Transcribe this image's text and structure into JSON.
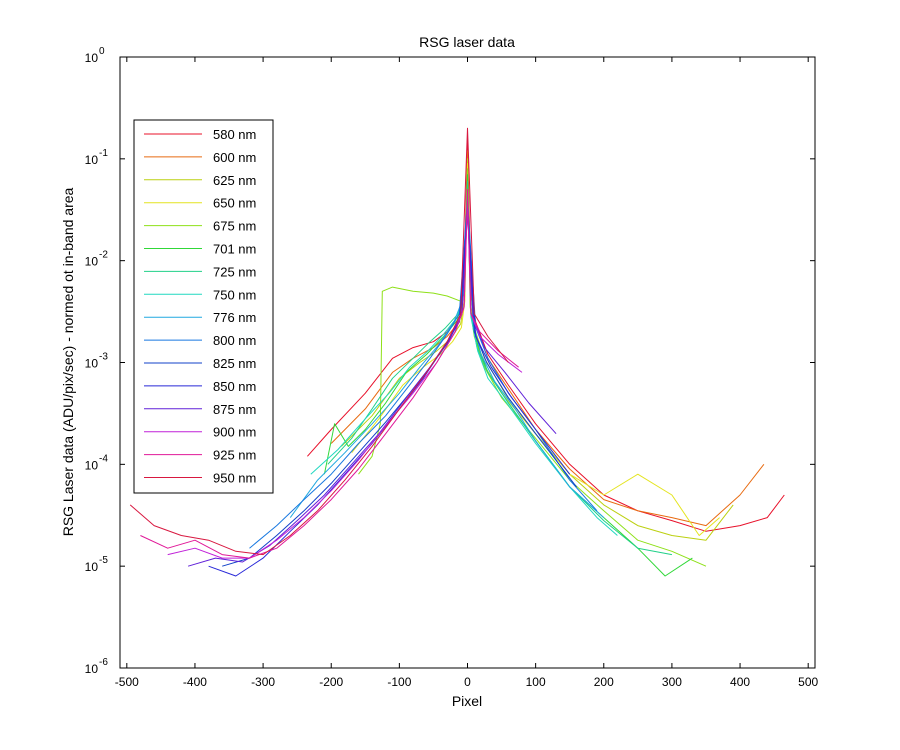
{
  "chart_data": {
    "type": "line",
    "title": "RSG  laser data",
    "xlabel": "Pixel",
    "ylabel": "RSG Laser data (ADU/pix/sec) - normed ot in-band area",
    "xlim": [
      -510,
      510
    ],
    "ylim": [
      1e-06,
      1
    ],
    "y_scale": "log",
    "grid": false,
    "legend_position": "upper-left",
    "x_ticks": [
      -500,
      -400,
      -300,
      -200,
      -100,
      0,
      100,
      200,
      300,
      400,
      500
    ],
    "x_tick_labels": [
      "-500",
      "-400",
      "-300",
      "-200",
      "-100",
      "0",
      "100",
      "200",
      "300",
      "400",
      "500"
    ],
    "y_ticks": [
      {
        "value": 1e-06,
        "base": "10",
        "exp": "-6"
      },
      {
        "value": 1e-05,
        "base": "10",
        "exp": "-5"
      },
      {
        "value": 0.0001,
        "base": "10",
        "exp": "-4"
      },
      {
        "value": 0.001,
        "base": "10",
        "exp": "-3"
      },
      {
        "value": 0.01,
        "base": "10",
        "exp": "-2"
      },
      {
        "value": 0.1,
        "base": "10",
        "exp": "-1"
      },
      {
        "value": 1,
        "base": "10",
        "exp": "0"
      }
    ],
    "series": [
      {
        "name": "580 nm",
        "color": "#e8102a",
        "x": [
          -235,
          -200,
          -150,
          -110,
          -80,
          -50,
          -30,
          -12,
          -5,
          0,
          5,
          12,
          30,
          60,
          100,
          150,
          200,
          250,
          300,
          350,
          400,
          440,
          465
        ],
        "y": [
          0.00012,
          0.00022,
          0.0005,
          0.0011,
          0.0014,
          0.0016,
          0.002,
          0.003,
          0.006,
          0.15,
          0.005,
          0.0025,
          0.0012,
          0.0006,
          0.00025,
          0.0001,
          5e-05,
          3.5e-05,
          2.8e-05,
          2.2e-05,
          2.5e-05,
          3e-05,
          5e-05
        ]
      },
      {
        "name": "600 nm",
        "color": "#e86a10",
        "x": [
          -200,
          -150,
          -110,
          -80,
          -50,
          -30,
          -12,
          -5,
          0,
          5,
          12,
          30,
          60,
          100,
          150,
          200,
          250,
          300,
          350,
          400,
          435
        ],
        "y": [
          0.00016,
          0.00035,
          0.0008,
          0.0011,
          0.0014,
          0.0018,
          0.0025,
          0.005,
          0.12,
          0.0045,
          0.0023,
          0.0011,
          0.00055,
          0.00022,
          9e-05,
          4.5e-05,
          3.5e-05,
          3e-05,
          2.5e-05,
          5e-05,
          0.0001
        ]
      },
      {
        "name": "625 nm",
        "color": "#bcd010",
        "x": [
          -185,
          -140,
          -100,
          -70,
          -45,
          -25,
          -10,
          -4,
          0,
          4,
          10,
          25,
          55,
          100,
          150,
          200,
          250,
          300,
          350,
          390
        ],
        "y": [
          0.00015,
          0.0003,
          0.0007,
          0.001,
          0.0013,
          0.0017,
          0.0024,
          0.0045,
          0.1,
          0.004,
          0.0022,
          0.0011,
          0.0005,
          0.0002,
          8e-05,
          4e-05,
          2.5e-05,
          2e-05,
          1.8e-05,
          4e-05
        ]
      },
      {
        "name": "650 nm",
        "color": "#e4e420",
        "x": [
          -170,
          -130,
          -95,
          -65,
          -40,
          -22,
          -9,
          -4,
          0,
          4,
          9,
          22,
          50,
          100,
          150,
          200,
          250,
          300,
          340,
          370
        ],
        "y": [
          0.00013,
          0.00028,
          0.0006,
          0.0009,
          0.0012,
          0.0016,
          0.0022,
          0.004,
          0.09,
          0.0038,
          0.002,
          0.001,
          0.0005,
          0.0002,
          8e-05,
          5e-05,
          8e-05,
          5e-05,
          2e-05,
          3e-05
        ]
      },
      {
        "name": "675 nm",
        "color": "#8ee018",
        "x": [
          -160,
          -140,
          -128,
          -125,
          -110,
          -80,
          -50,
          -30,
          -10,
          -4,
          0,
          4,
          10,
          25,
          50,
          100,
          150,
          200,
          250,
          300,
          350
        ],
        "y": [
          8e-05,
          0.00012,
          0.00025,
          0.005,
          0.0055,
          0.005,
          0.0048,
          0.0045,
          0.004,
          0.005,
          0.08,
          0.0035,
          0.0018,
          0.0009,
          0.00045,
          0.00018,
          7e-05,
          3.5e-05,
          1.8e-05,
          1.4e-05,
          1e-05
        ]
      },
      {
        "name": "701 nm",
        "color": "#30d838",
        "x": [
          -210,
          -195,
          -175,
          -150,
          -120,
          -90,
          -60,
          -35,
          -15,
          -5,
          0,
          5,
          15,
          30,
          60,
          100,
          150,
          200,
          250,
          290,
          330
        ],
        "y": [
          8e-05,
          0.00025,
          0.00015,
          0.00022,
          0.0004,
          0.0008,
          0.0012,
          0.0018,
          0.0026,
          0.005,
          0.07,
          0.0032,
          0.0015,
          0.0008,
          0.0004,
          0.00017,
          6e-05,
          3e-05,
          1.5e-05,
          8e-06,
          1.2e-05
        ]
      },
      {
        "name": "725 nm",
        "color": "#20d088",
        "x": [
          -205,
          -170,
          -140,
          -110,
          -80,
          -55,
          -32,
          -14,
          -5,
          0,
          5,
          14,
          30,
          60,
          100,
          150,
          200,
          250,
          300
        ],
        "y": [
          0.0001,
          0.00018,
          0.00035,
          0.0007,
          0.0011,
          0.0016,
          0.0022,
          0.003,
          0.005,
          0.06,
          0.003,
          0.0014,
          0.0008,
          0.0004,
          0.00017,
          6e-05,
          2.8e-05,
          1.5e-05,
          1.3e-05
        ]
      },
      {
        "name": "750 nm",
        "color": "#20d8c0",
        "x": [
          -230,
          -190,
          -150,
          -115,
          -85,
          -58,
          -35,
          -15,
          -5,
          0,
          5,
          15,
          30,
          60,
          100,
          150,
          190,
          220
        ],
        "y": [
          8e-05,
          0.00014,
          0.00028,
          0.0005,
          0.0009,
          0.0013,
          0.0019,
          0.0028,
          0.005,
          0.05,
          0.0028,
          0.0013,
          0.0007,
          0.00038,
          0.00016,
          6e-05,
          3e-05,
          2e-05
        ]
      },
      {
        "name": "776 nm",
        "color": "#20a8e0",
        "x": [
          -260,
          -220,
          -180,
          -140,
          -100,
          -70,
          -42,
          -20,
          -8,
          0,
          8,
          20,
          40,
          70,
          100,
          150,
          200
        ],
        "y": [
          3e-05,
          7e-05,
          0.00013,
          0.00025,
          0.0005,
          0.0009,
          0.0015,
          0.0025,
          0.004,
          0.045,
          0.0025,
          0.0012,
          0.00065,
          0.00035,
          0.00017,
          6e-05,
          3e-05
        ]
      },
      {
        "name": "800 nm",
        "color": "#1878e0",
        "x": [
          -320,
          -280,
          -240,
          -200,
          -160,
          -120,
          -85,
          -55,
          -30,
          -12,
          0,
          12,
          30,
          60,
          100,
          150,
          190
        ],
        "y": [
          1.5e-05,
          2.5e-05,
          4.5e-05,
          8e-05,
          0.00016,
          0.0003,
          0.0006,
          0.0011,
          0.0019,
          0.003,
          0.04,
          0.0022,
          0.0011,
          0.0005,
          0.00022,
          7e-05,
          3.5e-05
        ]
      },
      {
        "name": "825 nm",
        "color": "#1040c8",
        "x": [
          -360,
          -320,
          -280,
          -240,
          -200,
          -160,
          -120,
          -85,
          -55,
          -28,
          -10,
          0,
          10,
          28,
          60,
          100,
          160
        ],
        "y": [
          1e-05,
          1.2e-05,
          2e-05,
          3.5e-05,
          6.5e-05,
          0.00013,
          0.00026,
          0.0005,
          0.0009,
          0.0016,
          0.0028,
          0.035,
          0.002,
          0.001,
          0.00045,
          0.0002,
          6e-05
        ]
      },
      {
        "name": "850 nm",
        "color": "#2828d8",
        "x": [
          -380,
          -340,
          -300,
          -260,
          -220,
          -180,
          -140,
          -100,
          -65,
          -35,
          -12,
          0,
          12,
          35,
          65,
          100,
          150
        ],
        "y": [
          1e-05,
          8e-06,
          1.2e-05,
          2.2e-05,
          4e-05,
          8e-05,
          0.00016,
          0.00035,
          0.0007,
          0.0014,
          0.0025,
          0.03,
          0.0018,
          0.0009,
          0.00045,
          0.00022,
          8e-05
        ]
      },
      {
        "name": "875 nm",
        "color": "#6020d8",
        "x": [
          -410,
          -370,
          -330,
          -290,
          -250,
          -210,
          -170,
          -130,
          -90,
          -55,
          -25,
          -8,
          0,
          8,
          25,
          55,
          90,
          130
        ],
        "y": [
          1e-05,
          1.2e-05,
          1.1e-05,
          1.6e-05,
          2.8e-05,
          5e-05,
          0.0001,
          0.0002,
          0.00045,
          0.0009,
          0.0018,
          0.003,
          0.03,
          0.0028,
          0.0014,
          0.0008,
          0.0004,
          0.0002
        ]
      },
      {
        "name": "900 nm",
        "color": "#c020d8",
        "x": [
          -440,
          -400,
          -360,
          -320,
          -280,
          -240,
          -200,
          -160,
          -120,
          -80,
          -45,
          -18,
          -5,
          0,
          5,
          18,
          45,
          80
        ],
        "y": [
          1.3e-05,
          1.5e-05,
          1.2e-05,
          1.2e-05,
          1.8e-05,
          3e-05,
          5.5e-05,
          0.00011,
          0.00024,
          0.0005,
          0.001,
          0.002,
          0.0035,
          0.04,
          0.003,
          0.0018,
          0.0012,
          0.0008
        ]
      },
      {
        "name": "925 nm",
        "color": "#e01898",
        "x": [
          -480,
          -440,
          -400,
          -360,
          -320,
          -280,
          -240,
          -200,
          -160,
          -120,
          -80,
          -45,
          -18,
          -5,
          0,
          5,
          18,
          45,
          75
        ],
        "y": [
          2e-05,
          1.5e-05,
          1.8e-05,
          1.3e-05,
          1.2e-05,
          1.5e-05,
          2.5e-05,
          4.5e-05,
          9e-05,
          0.0002,
          0.00045,
          0.001,
          0.002,
          0.0035,
          0.05,
          0.003,
          0.002,
          0.0013,
          0.0009
        ]
      },
      {
        "name": "950 nm",
        "color": "#d81840",
        "x": [
          -495,
          -460,
          -420,
          -380,
          -340,
          -300,
          -260,
          -220,
          -180,
          -140,
          -100,
          -60,
          -30,
          -10,
          0,
          10,
          30,
          60
        ],
        "y": [
          4e-05,
          2.5e-05,
          2e-05,
          1.8e-05,
          1.4e-05,
          1.3e-05,
          2e-05,
          3.5e-05,
          7e-05,
          0.00015,
          0.00035,
          0.0008,
          0.0016,
          0.003,
          0.2,
          0.003,
          0.0018,
          0.001
        ]
      }
    ]
  }
}
